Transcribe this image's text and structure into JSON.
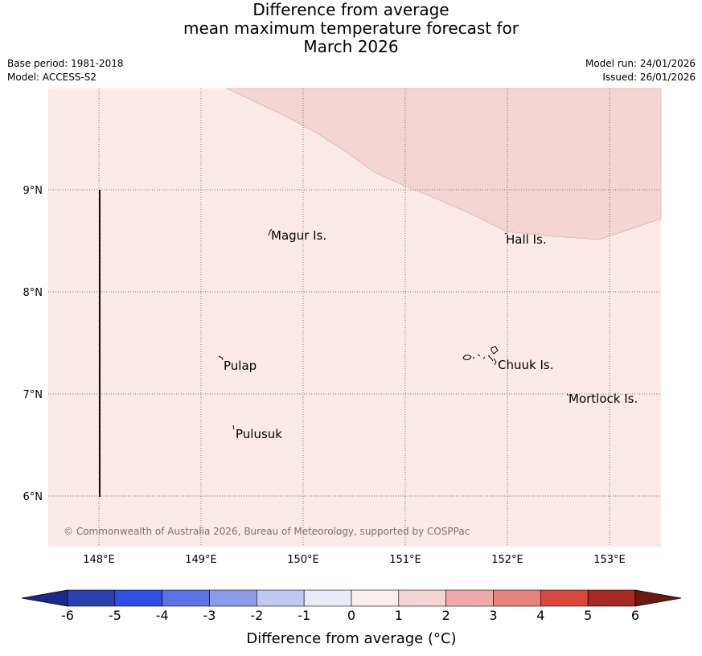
{
  "header": {
    "title_line1": "Difference from average",
    "title_line2": "mean maximum temperature forecast for",
    "title_line3": "March 2026",
    "base_period": "Base period: 1981-2018",
    "model": "Model: ACCESS-S2",
    "model_run": "Model run: 24/01/2026",
    "issued": "Issued: 26/01/2026"
  },
  "map": {
    "lon_labels": [
      "148°E",
      "149°E",
      "150°E",
      "151°E",
      "152°E",
      "153°E"
    ],
    "lat_labels": [
      "9°N",
      "8°N",
      "7°N",
      "6°N"
    ],
    "places": [
      "Magur Is.",
      "Hall Is.",
      "Pulap",
      "Chuuk Is.",
      "Mortlock Is.",
      "Pulusuk"
    ],
    "copyright": "© Commonwealth of Australia 2026, Bureau of Meteorology, supported by COSPPac",
    "fill_colors": {
      "range_0_1": "#fbeae8",
      "range_1_2": "#f5d5d3"
    }
  },
  "colorbar": {
    "ticks": [
      "-6",
      "-5",
      "-4",
      "-3",
      "-2",
      "-1",
      "0",
      "1",
      "2",
      "3",
      "4",
      "5",
      "6"
    ],
    "colors": [
      "#2a3fb0",
      "#2f4fe3",
      "#5a72e6",
      "#8a9bea",
      "#c1c8f1",
      "#e8ebf8",
      "#fbeeec",
      "#f5d5d3",
      "#eeaaa6",
      "#e8827c",
      "#d9473e",
      "#a82a22"
    ],
    "under_color": "#1a2a8c",
    "over_color": "#6e1812",
    "label": "Difference from average (°C)"
  }
}
